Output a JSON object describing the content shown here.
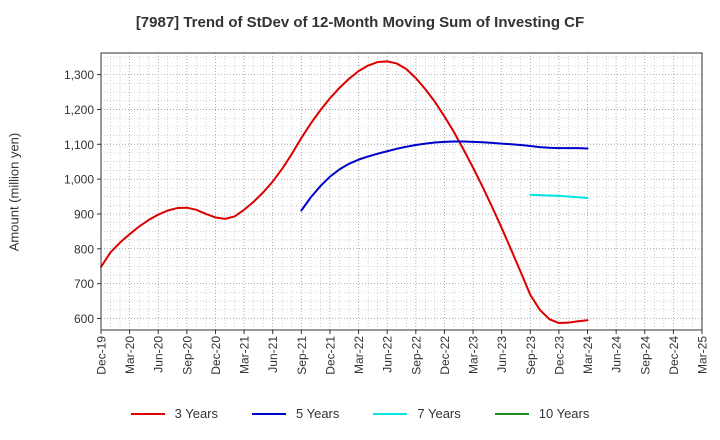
{
  "chart_data": {
    "type": "line",
    "title": "[7987]  Trend of StDev of 12-Month Moving Sum of Investing CF",
    "ylabel": "Amount (million yen)",
    "xlabel": "",
    "categories": [
      "Dec-19",
      "Mar-20",
      "Jun-20",
      "Sep-20",
      "Dec-20",
      "Mar-21",
      "Jun-21",
      "Sep-21",
      "Dec-21",
      "Mar-22",
      "Jun-22",
      "Sep-22",
      "Dec-22",
      "Mar-23",
      "Jun-23",
      "Sep-23",
      "Dec-23",
      "Mar-24",
      "Jun-24",
      "Sep-24",
      "Dec-24",
      "Mar-25"
    ],
    "ylim": [
      567,
      1362
    ],
    "yticks": [
      600,
      700,
      800,
      900,
      1000,
      1100,
      1200,
      1300
    ],
    "ytick_labels": [
      "600",
      "700",
      "800",
      "900",
      "1,000",
      "1,100",
      "1,200",
      "1,300"
    ],
    "grid": true,
    "legend_position": "bottom",
    "series": [
      {
        "name": "3 Years",
        "color": "#dd0000",
        "x": [
          "Dec-19",
          "Jan-20",
          "Feb-20",
          "Mar-20",
          "Apr-20",
          "May-20",
          "Jun-20",
          "Jul-20",
          "Aug-20",
          "Sep-20",
          "Oct-20",
          "Nov-20",
          "Dec-20",
          "Jan-21",
          "Feb-21",
          "Mar-21",
          "Apr-21",
          "May-21",
          "Jun-21",
          "Jul-21",
          "Aug-21",
          "Sep-21",
          "Oct-21",
          "Nov-21",
          "Dec-21",
          "Jan-22",
          "Feb-22",
          "Mar-22",
          "Apr-22",
          "May-22",
          "Jun-22",
          "Jul-22",
          "Aug-22",
          "Sep-22",
          "Oct-22",
          "Nov-22",
          "Dec-22",
          "Jan-23",
          "Feb-23",
          "Mar-23",
          "Apr-23",
          "May-23",
          "Jun-23",
          "Jul-23",
          "Aug-23",
          "Sep-23",
          "Oct-23",
          "Nov-23",
          "Dec-23",
          "Jan-24",
          "Feb-24",
          "Mar-24"
        ],
        "values": [
          748,
          790,
          818,
          842,
          864,
          883,
          898,
          910,
          917,
          918,
          912,
          900,
          890,
          886,
          893,
          912,
          935,
          962,
          993,
          1030,
          1072,
          1118,
          1160,
          1198,
          1232,
          1262,
          1288,
          1310,
          1326,
          1336,
          1338,
          1332,
          1316,
          1290,
          1258,
          1222,
          1180,
          1135,
          1085,
          1033,
          978,
          920,
          860,
          797,
          733,
          668,
          625,
          598,
          587,
          588,
          592,
          595
        ]
      },
      {
        "name": "5 Years",
        "color": "#0000cc",
        "x": [
          "Sep-21",
          "Oct-21",
          "Nov-21",
          "Dec-21",
          "Jan-22",
          "Feb-22",
          "Mar-22",
          "Apr-22",
          "May-22",
          "Jun-22",
          "Jul-22",
          "Aug-22",
          "Sep-22",
          "Oct-22",
          "Nov-22",
          "Dec-22",
          "Jan-23",
          "Feb-23",
          "Mar-23",
          "Apr-23",
          "May-23",
          "Jun-23",
          "Jul-23",
          "Aug-23",
          "Sep-23",
          "Oct-23",
          "Nov-23",
          "Dec-23",
          "Jan-24",
          "Feb-24",
          "Mar-24"
        ],
        "values": [
          910,
          948,
          980,
          1007,
          1028,
          1044,
          1056,
          1065,
          1073,
          1080,
          1087,
          1093,
          1098,
          1102,
          1105,
          1107,
          1108,
          1108,
          1107,
          1106,
          1104,
          1102,
          1100,
          1098,
          1095,
          1092,
          1090,
          1089,
          1089,
          1089,
          1088
        ]
      },
      {
        "name": "7 Years",
        "color": "#00e5e5",
        "x": [
          "Sep-23",
          "Oct-23",
          "Nov-23",
          "Dec-23",
          "Jan-24",
          "Feb-24",
          "Mar-24"
        ],
        "values": [
          955,
          954,
          953,
          952,
          950,
          948,
          946
        ]
      },
      {
        "name": "10 Years",
        "color": "#228b22",
        "x": [],
        "values": []
      }
    ]
  }
}
